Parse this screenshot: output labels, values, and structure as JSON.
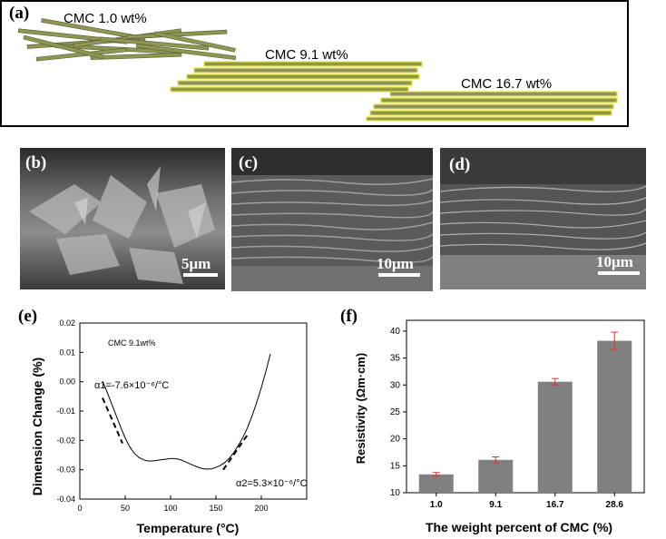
{
  "panel_a": {
    "label": "(a)",
    "labels": [
      "CMC 1.0 wt%",
      "CMC 9.1 wt%",
      "CMC 16.7 wt%"
    ]
  },
  "panel_b": {
    "label": "(b)",
    "scale": "5μm"
  },
  "panel_c": {
    "label": "(c)",
    "scale": "10μm"
  },
  "panel_d": {
    "label": "(d)",
    "scale": "10μm"
  },
  "chart_data": [
    {
      "panel": "(e)",
      "type": "line",
      "annotation": "CMC 9.1wt%",
      "alpha1": "α1=-7.6×10⁻⁶/°C",
      "alpha2": "α2=5.3×10⁻⁶/°C",
      "xlabel": "Temperature (°C)",
      "ylabel": "Dimension Change (%)",
      "xlim": [
        0,
        250
      ],
      "ylim": [
        -0.04,
        0.02
      ],
      "xticks": [
        "0",
        "50",
        "100",
        "150",
        "200"
      ],
      "yticks": [
        "-0.04",
        "-0.03",
        "-0.02",
        "-0.01",
        "0.00",
        "0.01",
        "0.02"
      ],
      "x": [
        25,
        30,
        35,
        40,
        45,
        50,
        55,
        60,
        65,
        70,
        75,
        80,
        85,
        90,
        95,
        100,
        105,
        110,
        115,
        120,
        125,
        130,
        135,
        140,
        145,
        150,
        155,
        160,
        165,
        170,
        175,
        180,
        185,
        190,
        195,
        200,
        205,
        210
      ],
      "y": [
        0.0002,
        -0.0035,
        -0.0075,
        -0.0115,
        -0.0155,
        -0.0192,
        -0.0222,
        -0.0244,
        -0.0258,
        -0.0266,
        -0.027,
        -0.027,
        -0.0268,
        -0.0266,
        -0.0264,
        -0.0262,
        -0.0262,
        -0.0265,
        -0.0271,
        -0.0278,
        -0.0285,
        -0.0291,
        -0.0296,
        -0.0298,
        -0.0297,
        -0.0292,
        -0.0285,
        -0.0275,
        -0.026,
        -0.024,
        -0.0215,
        -0.0188,
        -0.0155,
        -0.0115,
        -0.007,
        -0.002,
        0.0035,
        0.0095
      ],
      "fit1": {
        "x": [
          25,
          47
        ],
        "y": [
          -0.0055,
          -0.021
        ]
      },
      "fit2": {
        "x": [
          158,
          185
        ],
        "y": [
          -0.03,
          -0.018
        ]
      }
    },
    {
      "panel": "(f)",
      "type": "bar",
      "categories": [
        "1.0",
        "9.1",
        "16.7",
        "28.6"
      ],
      "values": [
        13.4,
        16.1,
        30.6,
        38.2
      ],
      "errors": [
        0.35,
        0.55,
        0.6,
        1.6
      ],
      "xlabel": "The weight percent of CMC (%)",
      "ylabel": "Resistivity (Ωm·cm)",
      "ylim": [
        10,
        42
      ],
      "yticks": [
        "10",
        "15",
        "20",
        "25",
        "30",
        "35",
        "40"
      ],
      "bar_color": "#808080",
      "error_color": "#e03030"
    }
  ]
}
